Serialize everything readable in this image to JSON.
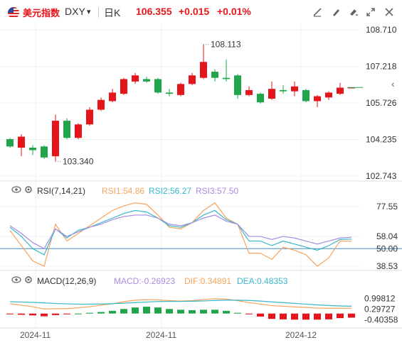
{
  "header": {
    "name": "美元指数",
    "symbol": "DXY",
    "period": "日K",
    "price": "106.355",
    "change": "+0.015",
    "change_pct": "+0.01%"
  },
  "icons": [
    "flag-us-icon",
    "chevron-down-icon",
    "draw-line-icon",
    "draw-brush-icon",
    "draw-marker-icon",
    "settings-sliders-icon",
    "expand-icon",
    "close-icon",
    "collapse-left-icon",
    "eye-icon",
    "gear-icon"
  ],
  "colors": {
    "up": "#e5151b",
    "down": "#1fa64a",
    "accent_red": "#e5151b",
    "rsi1": "#f7a35c",
    "rsi2": "#39b7c9",
    "rsi3": "#a78be3",
    "dif": "#f7a35c",
    "dea": "#39b7c9",
    "ref_line": "#3a8fd6"
  },
  "rsi_panel": {
    "name": "RSI(7,14,21)",
    "rsi1": "RSI1:54.86",
    "rsi2": "RSI2:56.27",
    "rsi3": "RSI3:57.50"
  },
  "macd_panel": {
    "name": "MACD(12,26,9)",
    "macd": "MACD:-0.26923",
    "dif": "DIF:0.34891",
    "dea": "DEA:0.48353"
  },
  "chart_data": {
    "type": "candlestick",
    "price_axis": {
      "ticks": [
        "108.710",
        "107.218",
        "105.726",
        "104.235",
        "102.743"
      ],
      "range": [
        102.743,
        108.71
      ]
    },
    "annotations": {
      "high": "108.113",
      "low": "103.340"
    },
    "x_ticks": [
      "2024-11",
      "2024-11",
      "2024-12"
    ],
    "candles": [
      {
        "o": 104.25,
        "c": 103.95,
        "h": 104.3,
        "l": 103.9
      },
      {
        "o": 103.9,
        "c": 104.35,
        "h": 104.45,
        "l": 103.55
      },
      {
        "o": 103.9,
        "c": 103.8,
        "h": 104.0,
        "l": 103.6
      },
      {
        "o": 103.95,
        "c": 103.5,
        "h": 104.0,
        "l": 103.45
      },
      {
        "o": 103.55,
        "c": 105.0,
        "h": 105.25,
        "l": 103.34
      },
      {
        "o": 105.0,
        "c": 104.3,
        "h": 105.1,
        "l": 104.25
      },
      {
        "o": 104.3,
        "c": 104.85,
        "h": 104.9,
        "l": 104.25
      },
      {
        "o": 104.85,
        "c": 105.45,
        "h": 105.55,
        "l": 104.8
      },
      {
        "o": 105.45,
        "c": 105.85,
        "h": 105.95,
        "l": 105.4
      },
      {
        "o": 105.8,
        "c": 106.15,
        "h": 106.3,
        "l": 105.75
      },
      {
        "o": 106.1,
        "c": 106.7,
        "h": 106.75,
        "l": 106.05
      },
      {
        "o": 106.6,
        "c": 106.85,
        "h": 106.95,
        "l": 106.5
      },
      {
        "o": 106.7,
        "c": 106.6,
        "h": 106.8,
        "l": 106.55
      },
      {
        "o": 106.7,
        "c": 106.15,
        "h": 106.75,
        "l": 106.1
      },
      {
        "o": 106.15,
        "c": 106.1,
        "h": 106.3,
        "l": 106.0
      },
      {
        "o": 106.05,
        "c": 106.5,
        "h": 106.55,
        "l": 106.0
      },
      {
        "o": 106.5,
        "c": 106.85,
        "h": 106.95,
        "l": 106.45
      },
      {
        "o": 106.75,
        "c": 107.4,
        "h": 108.113,
        "l": 106.7
      },
      {
        "o": 107.0,
        "c": 106.75,
        "h": 107.1,
        "l": 106.6
      },
      {
        "o": 106.75,
        "c": 106.7,
        "h": 107.5,
        "l": 106.6
      },
      {
        "o": 106.85,
        "c": 106.05,
        "h": 106.9,
        "l": 105.9
      },
      {
        "o": 106.05,
        "c": 106.25,
        "h": 106.4,
        "l": 106.0
      },
      {
        "o": 106.1,
        "c": 105.75,
        "h": 106.15,
        "l": 105.7
      },
      {
        "o": 105.9,
        "c": 106.3,
        "h": 106.6,
        "l": 105.85
      },
      {
        "o": 106.25,
        "c": 106.2,
        "h": 106.45,
        "l": 106.1
      },
      {
        "o": 106.2,
        "c": 106.4,
        "h": 106.6,
        "l": 106.0
      },
      {
        "o": 106.25,
        "c": 105.8,
        "h": 106.3,
        "l": 105.75
      },
      {
        "o": 105.8,
        "c": 106.0,
        "h": 106.05,
        "l": 105.55
      },
      {
        "o": 105.95,
        "c": 106.15,
        "h": 106.2,
        "l": 105.85
      },
      {
        "o": 106.1,
        "c": 106.35,
        "h": 106.55,
        "l": 106.05
      },
      {
        "o": 106.35,
        "c": 106.355,
        "h": 106.36,
        "l": 106.34
      }
    ],
    "rsi": {
      "axis_ticks": [
        "77.55",
        "58.04",
        "50.00",
        "38.53"
      ],
      "range": [
        38.53,
        77.55
      ],
      "ref": 50.0,
      "rsi1": [
        62,
        52,
        42,
        38.5,
        66,
        55,
        60,
        65,
        70,
        75,
        78,
        80,
        79,
        72,
        64,
        63,
        67,
        75,
        80,
        70,
        66,
        47,
        47,
        43,
        51,
        49,
        46,
        38.5,
        44,
        55,
        54.86
      ],
      "rsi2": [
        64,
        58,
        50,
        46,
        63,
        57,
        62,
        64,
        67,
        70,
        73,
        75,
        74,
        70,
        65,
        64,
        67,
        72,
        75,
        69,
        66,
        55,
        55,
        52,
        55,
        53,
        51,
        49,
        52,
        56,
        56.27
      ],
      "rsi3": [
        65,
        60,
        54,
        50,
        63,
        58,
        61,
        64,
        66,
        69,
        71,
        72,
        72,
        70,
        66,
        65,
        67,
        70,
        72,
        68,
        66,
        58,
        58,
        56,
        58,
        57,
        55,
        53,
        55,
        57,
        57.5
      ]
    },
    "macd": {
      "axis_ticks": [
        "0.99812",
        "0.29727",
        "-0.40358"
      ],
      "range": [
        -0.62,
        1.2
      ],
      "hist": [
        -0.05,
        -0.08,
        -0.12,
        -0.18,
        -0.1,
        -0.05,
        0.0,
        0.05,
        0.1,
        0.18,
        0.3,
        0.4,
        0.45,
        0.4,
        0.3,
        0.25,
        0.22,
        0.25,
        0.25,
        0.18,
        0.05,
        -0.05,
        -0.2,
        -0.35,
        -0.38,
        -0.4,
        -0.4,
        -0.4,
        -0.38,
        -0.3,
        -0.27
      ],
      "dif": [
        0.65,
        0.55,
        0.45,
        0.3,
        0.32,
        0.33,
        0.38,
        0.45,
        0.55,
        0.65,
        0.78,
        0.88,
        0.92,
        0.9,
        0.85,
        0.82,
        0.85,
        0.92,
        0.98,
        0.95,
        0.85,
        0.72,
        0.62,
        0.52,
        0.48,
        0.44,
        0.4,
        0.36,
        0.35,
        0.35,
        0.349
      ],
      "dea": [
        0.78,
        0.76,
        0.74,
        0.7,
        0.66,
        0.64,
        0.62,
        0.62,
        0.63,
        0.65,
        0.68,
        0.72,
        0.76,
        0.79,
        0.8,
        0.8,
        0.81,
        0.83,
        0.86,
        0.88,
        0.88,
        0.86,
        0.82,
        0.77,
        0.72,
        0.67,
        0.62,
        0.57,
        0.53,
        0.5,
        0.484
      ]
    }
  }
}
